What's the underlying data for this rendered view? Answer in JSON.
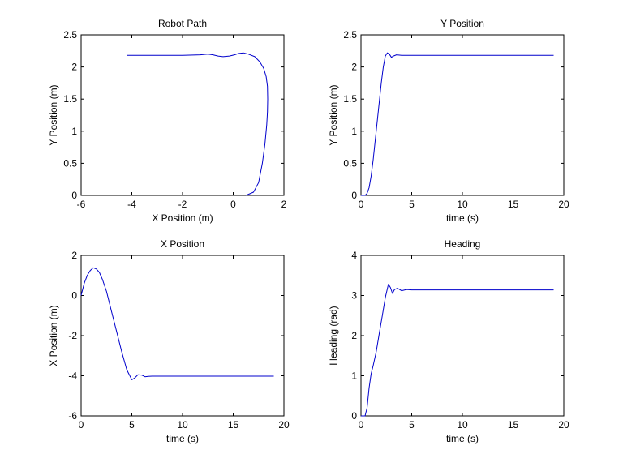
{
  "figure": {
    "background": "#ffffff",
    "line_color": "#0000cc",
    "axis_color": "#000000"
  },
  "chart_data": [
    {
      "id": "robot-path",
      "type": "line",
      "title": "Robot Path",
      "xlabel": "X Position (m)",
      "ylabel": "Y Position (m)",
      "xlim": [
        -6,
        2
      ],
      "ylim": [
        0,
        2.5
      ],
      "xticks": [
        -6,
        -4,
        -2,
        0,
        2
      ],
      "yticks": [
        0,
        0.5,
        1,
        1.5,
        2,
        2.5
      ],
      "xtick_labels": [
        "-6",
        "-4",
        "-2",
        "0",
        "2"
      ],
      "ytick_labels": [
        "0",
        "0.5",
        "1",
        "1.5",
        "2",
        "2.5"
      ],
      "grid": false,
      "series": [
        {
          "x": [
            0.5,
            0.8,
            1.0,
            1.15,
            1.25,
            1.32,
            1.35,
            1.36,
            1.35,
            1.3,
            1.2,
            1.05,
            0.85,
            0.6,
            0.4,
            0.2,
            0.05,
            -0.15,
            -0.4,
            -0.6,
            -0.8,
            -1.0,
            -1.3,
            -2.0,
            -3.0,
            -4.2
          ],
          "y": [
            0,
            0.05,
            0.2,
            0.5,
            0.8,
            1.1,
            1.3,
            1.5,
            1.7,
            1.85,
            1.98,
            2.08,
            2.16,
            2.2,
            2.22,
            2.21,
            2.19,
            2.17,
            2.16,
            2.17,
            2.19,
            2.2,
            2.19,
            2.18,
            2.18,
            2.18
          ]
        }
      ]
    },
    {
      "id": "y-position",
      "type": "line",
      "title": "Y Position",
      "xlabel": "time (s)",
      "ylabel": "Y Position (m)",
      "xlim": [
        0,
        20
      ],
      "ylim": [
        0,
        2.5
      ],
      "xticks": [
        0,
        5,
        10,
        15,
        20
      ],
      "yticks": [
        0,
        0.5,
        1,
        1.5,
        2,
        2.5
      ],
      "xtick_labels": [
        "0",
        "5",
        "10",
        "15",
        "20"
      ],
      "ytick_labels": [
        "0",
        "0.5",
        "1",
        "1.5",
        "2",
        "2.5"
      ],
      "grid": false,
      "series": [
        {
          "x": [
            0,
            0.4,
            0.6,
            0.8,
            1.0,
            1.2,
            1.4,
            1.6,
            1.8,
            2.0,
            2.2,
            2.4,
            2.6,
            2.8,
            3.0,
            3.2,
            3.5,
            4.0,
            5.0,
            10.0,
            15.0,
            19.0
          ],
          "y": [
            0,
            0.0,
            0.03,
            0.12,
            0.3,
            0.55,
            0.85,
            1.15,
            1.45,
            1.75,
            2.0,
            2.17,
            2.22,
            2.2,
            2.15,
            2.17,
            2.19,
            2.18,
            2.18,
            2.18,
            2.18,
            2.18
          ]
        }
      ]
    },
    {
      "id": "x-position",
      "type": "line",
      "title": "X Position",
      "xlabel": "time (s)",
      "ylabel": "X Position (m)",
      "xlim": [
        0,
        20
      ],
      "ylim": [
        -6,
        2
      ],
      "xticks": [
        0,
        5,
        10,
        15,
        20
      ],
      "yticks": [
        -6,
        -4,
        -2,
        0,
        2
      ],
      "xtick_labels": [
        "0",
        "5",
        "10",
        "15",
        "20"
      ],
      "ytick_labels": [
        "-6",
        "-4",
        "-2",
        "0",
        "2"
      ],
      "grid": false,
      "series": [
        {
          "x": [
            0,
            0.3,
            0.6,
            0.9,
            1.2,
            1.5,
            1.8,
            2.1,
            2.5,
            3.0,
            3.5,
            4.0,
            4.5,
            5.0,
            5.3,
            5.6,
            6.0,
            6.3,
            6.6,
            7.0,
            8.0,
            10.0,
            15.0,
            19.0
          ],
          "y": [
            0,
            0.6,
            1.0,
            1.25,
            1.38,
            1.32,
            1.15,
            0.8,
            0.2,
            -0.8,
            -1.8,
            -2.8,
            -3.7,
            -4.2,
            -4.1,
            -3.95,
            -3.97,
            -4.05,
            -4.03,
            -4.02,
            -4.02,
            -4.02,
            -4.02,
            -4.02
          ]
        }
      ]
    },
    {
      "id": "heading",
      "type": "line",
      "title": "Heading",
      "xlabel": "time (s)",
      "ylabel": "Heading (rad)",
      "xlim": [
        0,
        20
      ],
      "ylim": [
        0,
        4
      ],
      "xticks": [
        0,
        5,
        10,
        15,
        20
      ],
      "yticks": [
        0,
        1,
        2,
        3,
        4
      ],
      "xtick_labels": [
        "0",
        "5",
        "10",
        "15",
        "20"
      ],
      "ytick_labels": [
        "0",
        "1",
        "2",
        "3",
        "4"
      ],
      "grid": false,
      "series": [
        {
          "x": [
            0,
            0.4,
            0.6,
            0.8,
            1.0,
            1.2,
            1.5,
            1.8,
            2.1,
            2.4,
            2.7,
            2.9,
            3.1,
            3.3,
            3.6,
            4.0,
            4.5,
            5.0,
            10.0,
            15.0,
            19.0
          ],
          "y": [
            0,
            0.0,
            0.2,
            0.7,
            1.05,
            1.25,
            1.6,
            2.05,
            2.5,
            2.95,
            3.28,
            3.2,
            3.05,
            3.15,
            3.18,
            3.12,
            3.15,
            3.14,
            3.14,
            3.14,
            3.14
          ]
        }
      ]
    }
  ]
}
